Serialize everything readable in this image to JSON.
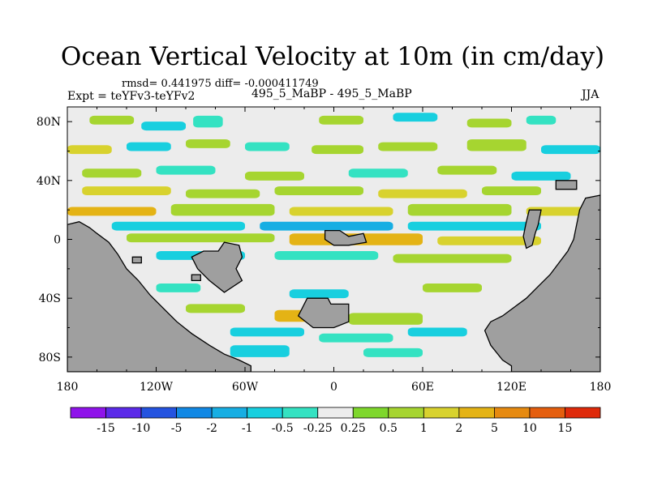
{
  "chart_data": {
    "type": "heatmap",
    "title": "Ocean Vertical Velocity at 10m (in cm/day)",
    "stats": "rmsd= 0.441975 diff= -0.000411749",
    "left_subtitle": "Expt = teYFv3-teYFv2",
    "center_subtitle": "495_5_MaBP - 495_5_MaBP",
    "right_subtitle": "JJA",
    "units": "cm/day",
    "x_axis": {
      "range": [
        -180,
        180
      ],
      "ticks": [
        -180,
        -120,
        -60,
        0,
        60,
        120,
        180
      ],
      "tick_labels": [
        "180",
        "120W",
        "60W",
        "0",
        "60E",
        "120E",
        "180"
      ]
    },
    "y_axis": {
      "range": [
        -90,
        90
      ],
      "ticks": [
        80,
        40,
        0,
        -40,
        -80
      ],
      "tick_labels": [
        "80N",
        "40N",
        "0",
        "40S",
        "80S"
      ]
    },
    "colorbar": {
      "levels": [
        "-15",
        "-10",
        "-5",
        "-2",
        "-1",
        "-0.5",
        "-0.25",
        "0.25",
        "0.5",
        "1",
        "2",
        "5",
        "10",
        "15"
      ],
      "colors": [
        "#8f13ea",
        "#5b2ae8",
        "#2453e0",
        "#1188e4",
        "#17aee3",
        "#18cfdf",
        "#34e2c2",
        "#ececec",
        "#7ed72c",
        "#a6d530",
        "#d8d22e",
        "#e4b315",
        "#e68a10",
        "#e45e0e",
        "#df2a0a"
      ]
    },
    "colors": {
      "land": "#9f9f9f",
      "ocean_neutral": "#ececec"
    },
    "bands": [
      {
        "lon": [
          -165,
          -135
        ],
        "lat": [
          84,
          78
        ],
        "level": "0.5"
      },
      {
        "lon": [
          -130,
          -100
        ],
        "lat": [
          80,
          74
        ],
        "level": "-0.5"
      },
      {
        "lon": [
          -95,
          -75
        ],
        "lat": [
          84,
          76
        ],
        "level": "-0.25"
      },
      {
        "lon": [
          -10,
          20
        ],
        "lat": [
          84,
          78
        ],
        "level": "0.5"
      },
      {
        "lon": [
          40,
          70
        ],
        "lat": [
          86,
          80
        ],
        "level": "-0.5"
      },
      {
        "lon": [
          90,
          120
        ],
        "lat": [
          82,
          76
        ],
        "level": "0.5"
      },
      {
        "lon": [
          130,
          150
        ],
        "lat": [
          84,
          78
        ],
        "level": "-0.25"
      },
      {
        "lon": [
          -180,
          -150
        ],
        "lat": [
          64,
          58
        ],
        "level": "1"
      },
      {
        "lon": [
          -140,
          -110
        ],
        "lat": [
          66,
          60
        ],
        "level": "-0.5"
      },
      {
        "lon": [
          -100,
          -70
        ],
        "lat": [
          68,
          62
        ],
        "level": "0.5"
      },
      {
        "lon": [
          -60,
          -30
        ],
        "lat": [
          66,
          60
        ],
        "level": "-0.25"
      },
      {
        "lon": [
          -15,
          20
        ],
        "lat": [
          64,
          58
        ],
        "level": "0.5"
      },
      {
        "lon": [
          30,
          70
        ],
        "lat": [
          66,
          60
        ],
        "level": "0.5"
      },
      {
        "lon": [
          90,
          130
        ],
        "lat": [
          68,
          60
        ],
        "level": "0.5"
      },
      {
        "lon": [
          140,
          180
        ],
        "lat": [
          64,
          58
        ],
        "level": "-0.5"
      },
      {
        "lon": [
          -170,
          -130
        ],
        "lat": [
          48,
          42
        ],
        "level": "0.5"
      },
      {
        "lon": [
          -120,
          -80
        ],
        "lat": [
          50,
          44
        ],
        "level": "-0.25"
      },
      {
        "lon": [
          -60,
          -20
        ],
        "lat": [
          46,
          40
        ],
        "level": "0.5"
      },
      {
        "lon": [
          10,
          50
        ],
        "lat": [
          48,
          42
        ],
        "level": "-0.25"
      },
      {
        "lon": [
          70,
          110
        ],
        "lat": [
          50,
          44
        ],
        "level": "0.5"
      },
      {
        "lon": [
          120,
          160
        ],
        "lat": [
          46,
          40
        ],
        "level": "-0.5"
      },
      {
        "lon": [
          -170,
          -110
        ],
        "lat": [
          36,
          30
        ],
        "level": "1"
      },
      {
        "lon": [
          -100,
          -50
        ],
        "lat": [
          34,
          28
        ],
        "level": "0.5"
      },
      {
        "lon": [
          -40,
          20
        ],
        "lat": [
          36,
          30
        ],
        "level": "0.5"
      },
      {
        "lon": [
          30,
          90
        ],
        "lat": [
          34,
          28
        ],
        "level": "1"
      },
      {
        "lon": [
          100,
          140
        ],
        "lat": [
          36,
          30
        ],
        "level": "0.5"
      },
      {
        "lon": [
          -180,
          -120
        ],
        "lat": [
          22,
          16
        ],
        "level": "2"
      },
      {
        "lon": [
          -110,
          -40
        ],
        "lat": [
          24,
          16
        ],
        "level": "0.5"
      },
      {
        "lon": [
          -30,
          40
        ],
        "lat": [
          22,
          16
        ],
        "level": "1"
      },
      {
        "lon": [
          50,
          120
        ],
        "lat": [
          24,
          16
        ],
        "level": "0.5"
      },
      {
        "lon": [
          130,
          170
        ],
        "lat": [
          22,
          16
        ],
        "level": "1"
      },
      {
        "lon": [
          -150,
          -60
        ],
        "lat": [
          12,
          6
        ],
        "level": "-0.5"
      },
      {
        "lon": [
          -50,
          40
        ],
        "lat": [
          12,
          6
        ],
        "level": "-1"
      },
      {
        "lon": [
          50,
          140
        ],
        "lat": [
          12,
          6
        ],
        "level": "-0.5"
      },
      {
        "lon": [
          -140,
          -40
        ],
        "lat": [
          4,
          -2
        ],
        "level": "0.5"
      },
      {
        "lon": [
          -30,
          60
        ],
        "lat": [
          4,
          -4
        ],
        "level": "2"
      },
      {
        "lon": [
          70,
          140
        ],
        "lat": [
          2,
          -4
        ],
        "level": "1"
      },
      {
        "lon": [
          -120,
          -60
        ],
        "lat": [
          -8,
          -14
        ],
        "level": "-0.5"
      },
      {
        "lon": [
          -40,
          30
        ],
        "lat": [
          -8,
          -14
        ],
        "level": "-0.25"
      },
      {
        "lon": [
          40,
          120
        ],
        "lat": [
          -10,
          -16
        ],
        "level": "0.5"
      },
      {
        "lon": [
          -120,
          -90
        ],
        "lat": [
          -30,
          -36
        ],
        "level": "-0.25"
      },
      {
        "lon": [
          -30,
          10
        ],
        "lat": [
          -34,
          -40
        ],
        "level": "-0.5"
      },
      {
        "lon": [
          60,
          100
        ],
        "lat": [
          -30,
          -36
        ],
        "level": "0.5"
      },
      {
        "lon": [
          -100,
          -60
        ],
        "lat": [
          -44,
          -50
        ],
        "level": "0.5"
      },
      {
        "lon": [
          -40,
          0
        ],
        "lat": [
          -48,
          -56
        ],
        "level": "2"
      },
      {
        "lon": [
          10,
          60
        ],
        "lat": [
          -50,
          -58
        ],
        "level": "0.5"
      },
      {
        "lon": [
          -70,
          -20
        ],
        "lat": [
          -60,
          -66
        ],
        "level": "-0.5"
      },
      {
        "lon": [
          -10,
          40
        ],
        "lat": [
          -64,
          -70
        ],
        "level": "-0.25"
      },
      {
        "lon": [
          50,
          90
        ],
        "lat": [
          -60,
          -66
        ],
        "level": "-0.5"
      },
      {
        "lon": [
          -70,
          -30
        ],
        "lat": [
          -72,
          -80
        ],
        "level": "-0.5"
      },
      {
        "lon": [
          20,
          60
        ],
        "lat": [
          -74,
          -80
        ],
        "level": "-0.25"
      }
    ],
    "land_polygons": [
      {
        "name": "west-continent",
        "points": [
          [
            -180,
            10
          ],
          [
            -172,
            12
          ],
          [
            -165,
            8
          ],
          [
            -160,
            4
          ],
          [
            -152,
            -2
          ],
          [
            -146,
            -10
          ],
          [
            -140,
            -20
          ],
          [
            -132,
            -28
          ],
          [
            -124,
            -38
          ],
          [
            -116,
            -46
          ],
          [
            -106,
            -56
          ],
          [
            -96,
            -64
          ],
          [
            -84,
            -72
          ],
          [
            -74,
            -78
          ],
          [
            -64,
            -82
          ],
          [
            -56,
            -86
          ],
          [
            -56,
            -90
          ],
          [
            -180,
            -90
          ]
        ]
      },
      {
        "name": "east-continent",
        "points": [
          [
            180,
            30
          ],
          [
            170,
            28
          ],
          [
            166,
            20
          ],
          [
            164,
            10
          ],
          [
            162,
            0
          ],
          [
            158,
            -8
          ],
          [
            152,
            -16
          ],
          [
            146,
            -24
          ],
          [
            138,
            -32
          ],
          [
            130,
            -40
          ],
          [
            122,
            -46
          ],
          [
            114,
            -52
          ],
          [
            106,
            -56
          ],
          [
            102,
            -62
          ],
          [
            106,
            -72
          ],
          [
            114,
            -82
          ],
          [
            120,
            -86
          ],
          [
            120,
            -90
          ],
          [
            180,
            -90
          ]
        ]
      },
      {
        "name": "island-mid-west",
        "points": [
          [
            -88,
            -8
          ],
          [
            -78,
            -8
          ],
          [
            -74,
            -2
          ],
          [
            -64,
            -4
          ],
          [
            -62,
            -12
          ],
          [
            -66,
            -20
          ],
          [
            -62,
            -28
          ],
          [
            -74,
            -36
          ],
          [
            -84,
            -28
          ],
          [
            -92,
            -20
          ],
          [
            -96,
            -12
          ]
        ]
      },
      {
        "name": "island-south",
        "points": [
          [
            -18,
            -40
          ],
          [
            -4,
            -40
          ],
          [
            -2,
            -44
          ],
          [
            10,
            -44
          ],
          [
            10,
            -56
          ],
          [
            0,
            -60
          ],
          [
            -14,
            -60
          ],
          [
            -24,
            -52
          ]
        ]
      },
      {
        "name": "island-equator",
        "points": [
          [
            -6,
            6
          ],
          [
            4,
            6
          ],
          [
            10,
            2
          ],
          [
            20,
            4
          ],
          [
            22,
            -2
          ],
          [
            10,
            -4
          ],
          [
            0,
            -4
          ],
          [
            -6,
            0
          ]
        ]
      },
      {
        "name": "islet-east",
        "points": [
          [
            132,
            20
          ],
          [
            140,
            20
          ],
          [
            138,
            10
          ],
          [
            136,
            4
          ],
          [
            134,
            -4
          ],
          [
            130,
            -6
          ],
          [
            128,
            2
          ],
          [
            130,
            12
          ]
        ]
      },
      {
        "name": "islet-northeast",
        "points": [
          [
            150,
            40
          ],
          [
            164,
            40
          ],
          [
            164,
            34
          ],
          [
            150,
            34
          ]
        ]
      },
      {
        "name": "islet-west-1",
        "points": [
          [
            -136,
            -12
          ],
          [
            -130,
            -12
          ],
          [
            -130,
            -16
          ],
          [
            -136,
            -16
          ]
        ]
      },
      {
        "name": "islet-west-2",
        "points": [
          [
            -96,
            -24
          ],
          [
            -90,
            -24
          ],
          [
            -90,
            -28
          ],
          [
            -96,
            -28
          ]
        ]
      }
    ]
  }
}
